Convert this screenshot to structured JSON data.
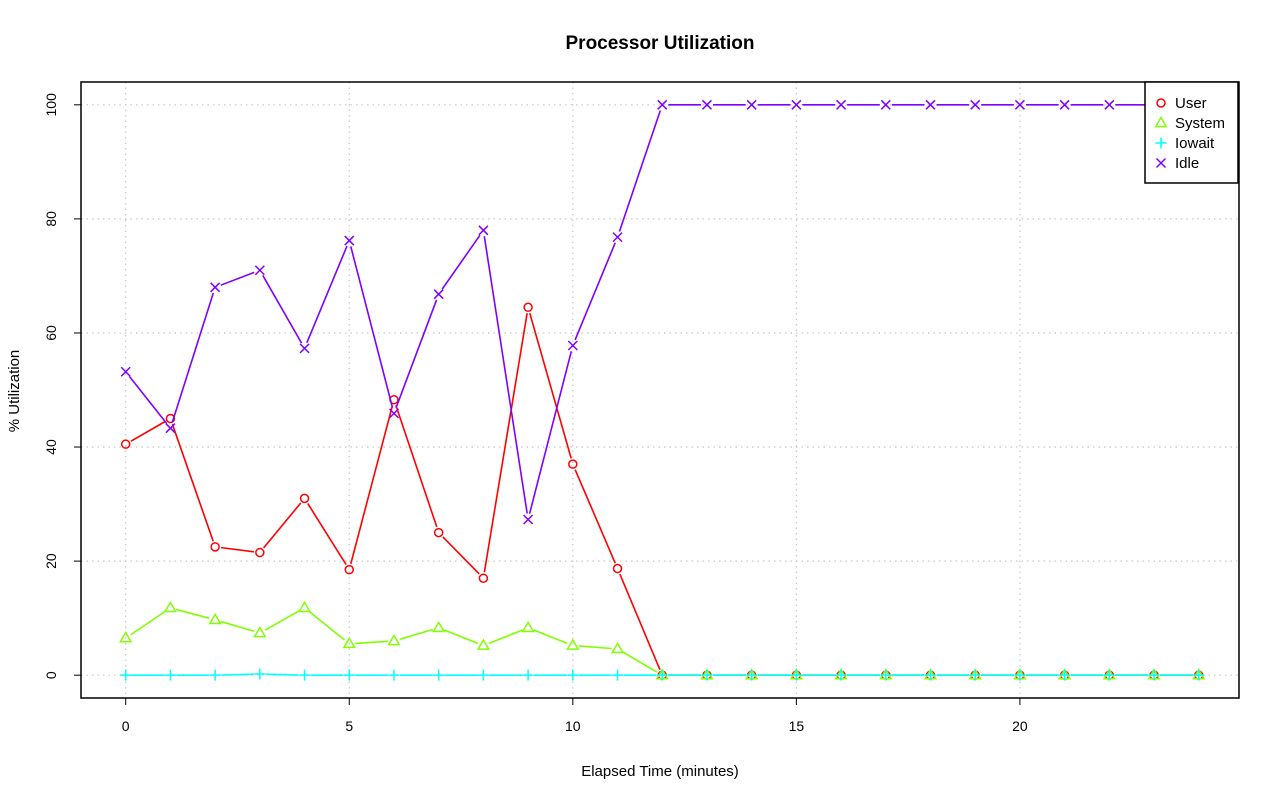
{
  "chart_data": {
    "type": "line",
    "title": "Processor Utilization",
    "xlabel": "Elapsed Time (minutes)",
    "ylabel": "% Utilization",
    "xlim": [
      -1,
      24.9
    ],
    "ylim": [
      -4,
      104
    ],
    "x_ticks": [
      0,
      5,
      10,
      15,
      20
    ],
    "y_ticks": [
      0,
      20,
      40,
      60,
      80,
      100
    ],
    "grid": true,
    "legend_position": "top-right",
    "x": [
      0,
      1,
      2,
      3,
      4,
      5,
      6,
      7,
      8,
      9,
      10,
      11,
      12,
      13,
      14,
      15,
      16,
      17,
      18,
      19,
      20,
      21,
      22,
      23,
      24
    ],
    "series": [
      {
        "name": "User",
        "color": "#ff0000",
        "marker": "circle",
        "values": [
          40.5,
          45,
          22.5,
          21.5,
          31,
          18.5,
          48.3,
          25,
          17,
          64.5,
          37,
          18.7,
          0,
          0,
          0,
          0,
          0,
          0,
          0,
          0,
          0,
          0,
          0,
          0,
          0
        ]
      },
      {
        "name": "System",
        "color": "#80ff00",
        "marker": "triangle",
        "values": [
          6.5,
          11.8,
          9.7,
          7.4,
          11.8,
          5.5,
          6,
          8.3,
          5.2,
          8.3,
          5.2,
          4.6,
          0,
          0,
          0,
          0,
          0,
          0,
          0,
          0,
          0,
          0,
          0,
          0,
          0
        ]
      },
      {
        "name": "Iowait",
        "color": "#00ffff",
        "marker": "plus",
        "values": [
          0,
          0,
          0,
          0.2,
          0,
          0,
          0,
          0,
          0,
          0,
          0,
          0,
          0,
          0,
          0,
          0,
          0,
          0,
          0,
          0,
          0,
          0,
          0,
          0,
          0
        ]
      },
      {
        "name": "Idle",
        "color": "#8000ff",
        "marker": "cross",
        "values": [
          53.2,
          43.3,
          68,
          71,
          57.3,
          76.2,
          45.9,
          66.8,
          78,
          27.3,
          57.8,
          76.8,
          100,
          100,
          100,
          100,
          100,
          100,
          100,
          100,
          100,
          100,
          100,
          100,
          100
        ]
      }
    ]
  }
}
